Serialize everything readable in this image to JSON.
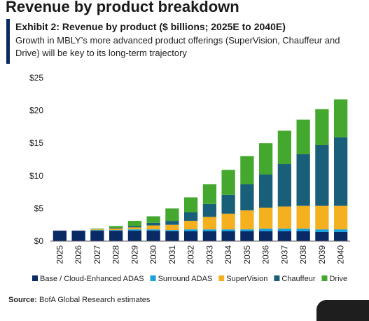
{
  "header": {
    "headline": "Revenue by product breakdown",
    "subtitle": "Exhibit 2: Revenue by product ($ billions; 2025E to 2040E)",
    "description": "Growth in MBLY’s more advanced product offerings (SuperVision, Chauffeur and Drive) will be key to its long-term trajectory"
  },
  "footer": {
    "source_label": "Source:",
    "source_text": " BofA Global Research estimates"
  },
  "chart_data": {
    "type": "bar",
    "stacked": true,
    "categories": [
      "2025",
      "2026",
      "2027",
      "2028",
      "2029",
      "2030",
      "2031",
      "2032",
      "2033",
      "2034",
      "2035",
      "2036",
      "2037",
      "2038",
      "2039",
      "2040"
    ],
    "ylim": [
      0,
      25
    ],
    "yticks": [
      0,
      5,
      10,
      15,
      20,
      25
    ],
    "ytick_labels": [
      "$0",
      "$5",
      "$10",
      "$15",
      "$20",
      "$25"
    ],
    "grid": false,
    "legend_position": "bottom",
    "series": [
      {
        "name": "Base / Cloud-Enhanced ADAS",
        "color": "#0a2a66",
        "values": [
          1.6,
          1.6,
          1.6,
          1.6,
          1.6,
          1.6,
          1.5,
          1.5,
          1.5,
          1.5,
          1.5,
          1.5,
          1.5,
          1.5,
          1.4,
          1.4
        ]
      },
      {
        "name": "Surround ADAS",
        "color": "#1aa0dc",
        "values": [
          0.0,
          0.0,
          0.1,
          0.1,
          0.2,
          0.2,
          0.2,
          0.3,
          0.3,
          0.3,
          0.3,
          0.4,
          0.4,
          0.4,
          0.4,
          0.4
        ]
      },
      {
        "name": "SuperVision",
        "color": "#f5b020",
        "values": [
          0.0,
          0.0,
          0.1,
          0.2,
          0.3,
          0.6,
          0.8,
          1.3,
          1.9,
          2.4,
          2.9,
          3.2,
          3.4,
          3.5,
          3.6,
          3.6
        ]
      },
      {
        "name": "Chauffeur",
        "color": "#1a5f7a",
        "values": [
          0.0,
          0.0,
          0.0,
          0.1,
          0.2,
          0.4,
          0.6,
          1.3,
          2.0,
          2.9,
          4.0,
          5.1,
          6.5,
          7.9,
          9.3,
          10.5
        ]
      },
      {
        "name": "Drive",
        "color": "#43a82d",
        "values": [
          0.0,
          0.0,
          0.1,
          0.3,
          0.8,
          1.0,
          1.9,
          2.3,
          3.0,
          3.8,
          4.3,
          4.8,
          5.1,
          5.3,
          5.5,
          5.8
        ]
      }
    ]
  }
}
